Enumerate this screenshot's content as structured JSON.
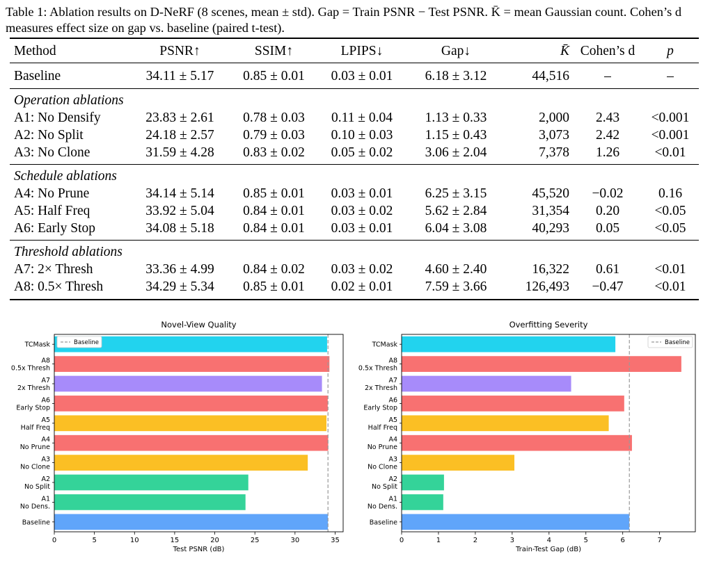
{
  "caption": {
    "text": "Table 1: Ablation results on D-NeRF (8 scenes, mean ± std). Gap = Train PSNR − Test PSNR. K̄ = mean Gaussian count. Cohen’s d measures effect size on gap vs. baseline (paired t-test)."
  },
  "table": {
    "headers": [
      "Method",
      "PSNR↑",
      "SSIM↑",
      "LPIPS↓",
      "Gap↓",
      "K̄",
      "Cohen’s d",
      "p"
    ],
    "baseline": [
      "Baseline",
      "34.11 ± 5.17",
      "0.85 ± 0.01",
      "0.03 ± 0.01",
      "6.18 ± 3.12",
      "44,516",
      "–",
      "–"
    ],
    "groups": [
      {
        "title": "Operation ablations",
        "rows": [
          [
            "A1: No Densify",
            "23.83 ± 2.61",
            "0.78 ± 0.03",
            "0.11 ± 0.04",
            "1.13 ± 0.33",
            "2,000",
            "2.43",
            "<0.001"
          ],
          [
            "A2: No Split",
            "24.18 ± 2.57",
            "0.79 ± 0.03",
            "0.10 ± 0.03",
            "1.15 ± 0.43",
            "3,073",
            "2.42",
            "<0.001"
          ],
          [
            "A3: No Clone",
            "31.59 ± 4.28",
            "0.83 ± 0.02",
            "0.05 ± 0.02",
            "3.06 ± 2.04",
            "7,378",
            "1.26",
            "<0.01"
          ]
        ]
      },
      {
        "title": "Schedule ablations",
        "rows": [
          [
            "A4: No Prune",
            "34.14 ± 5.14",
            "0.85 ± 0.01",
            "0.03 ± 0.01",
            "6.25 ± 3.15",
            "45,520",
            "−0.02",
            "0.16"
          ],
          [
            "A5: Half Freq",
            "33.92 ± 5.04",
            "0.84 ± 0.01",
            "0.03 ± 0.02",
            "5.62 ± 2.84",
            "31,354",
            "0.20",
            "<0.05"
          ],
          [
            "A6: Early Stop",
            "34.08 ± 5.18",
            "0.84 ± 0.01",
            "0.03 ± 0.01",
            "6.04 ± 3.08",
            "40,293",
            "0.05",
            "<0.05"
          ]
        ]
      },
      {
        "title": "Threshold ablations",
        "rows": [
          [
            "A7: 2× Thresh",
            "33.36 ± 4.99",
            "0.84 ± 0.02",
            "0.03 ± 0.02",
            "4.60 ± 2.40",
            "16,322",
            "0.61",
            "<0.01"
          ],
          [
            "A8: 0.5× Thresh",
            "34.29 ± 5.34",
            "0.85 ± 0.01",
            "0.02 ± 0.01",
            "7.59 ± 3.66",
            "126,493",
            "−0.47",
            "<0.01"
          ]
        ]
      }
    ]
  },
  "chart_data": [
    {
      "type": "bar",
      "orientation": "horizontal",
      "title": "Novel-View Quality",
      "xlabel": "Test PSNR (dB)",
      "ylabel": "",
      "categories": [
        "Baseline",
        "A1\nNo Dens.",
        "A2\nNo Split",
        "A3\nNo Clone",
        "A4\nNo Prune",
        "A5\nHalf Freq",
        "A6\nEarly Stop",
        "A7\n2x Thresh",
        "A8\n0.5x Thresh",
        "TCMask"
      ],
      "values": [
        34.11,
        23.83,
        24.18,
        31.59,
        34.14,
        33.92,
        34.08,
        33.36,
        34.29,
        34.0
      ],
      "colors": [
        "#60a5fa",
        "#34d399",
        "#34d399",
        "#fbbf24",
        "#f87171",
        "#fbbf24",
        "#f87171",
        "#a78bfa",
        "#f87171",
        "#22d3ee"
      ],
      "xlim": [
        0,
        36
      ],
      "xticks": [
        0,
        5,
        10,
        15,
        20,
        25,
        30,
        35
      ],
      "reference_line": {
        "label": "Baseline",
        "value": 34.11
      },
      "legend": "top-left"
    },
    {
      "type": "bar",
      "orientation": "horizontal",
      "title": "Overfitting Severity",
      "xlabel": "Train-Test Gap (dB)",
      "ylabel": "",
      "categories": [
        "Baseline",
        "A1\nNo Dens.",
        "A2\nNo Split",
        "A3\nNo Clone",
        "A4\nNo Prune",
        "A5\nHalf Freq",
        "A6\nEarly Stop",
        "A7\n2x Thresh",
        "A8\n0.5x Thresh",
        "TCMask"
      ],
      "values": [
        6.18,
        1.13,
        1.15,
        3.06,
        6.25,
        5.62,
        6.04,
        4.6,
        7.59,
        5.8
      ],
      "colors": [
        "#60a5fa",
        "#34d399",
        "#34d399",
        "#fbbf24",
        "#f87171",
        "#fbbf24",
        "#f87171",
        "#a78bfa",
        "#f87171",
        "#22d3ee"
      ],
      "xlim": [
        0,
        7.97
      ],
      "xticks": [
        0,
        1,
        2,
        3,
        4,
        5,
        6,
        7
      ],
      "reference_line": {
        "label": "Baseline",
        "value": 6.18
      },
      "legend": "top-right"
    }
  ]
}
